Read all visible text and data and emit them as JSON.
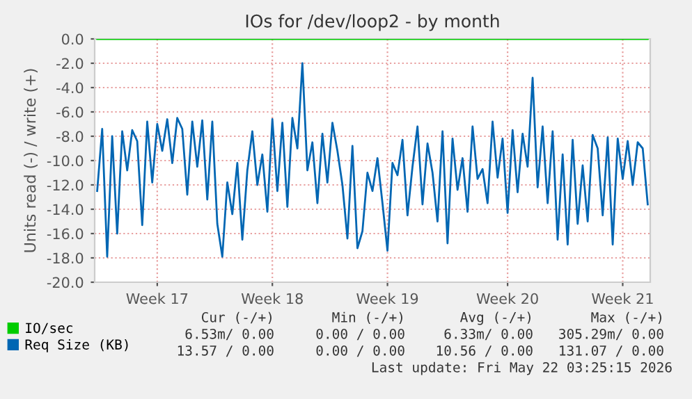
{
  "chart_data": {
    "type": "line",
    "title": "IOs for /dev/loop2 - by month",
    "ylabel": "Units read (-) / write (+)",
    "categories": [
      null,
      null,
      null,
      null,
      null,
      null,
      null,
      null,
      null,
      null,
      null,
      null,
      "Week 17",
      null,
      null,
      null,
      null,
      null,
      null,
      null,
      null,
      null,
      null,
      null,
      null,
      null,
      null,
      null,
      null,
      null,
      null,
      null,
      null,
      null,
      null,
      "Week 18",
      null,
      null,
      null,
      null,
      null,
      null,
      null,
      null,
      null,
      null,
      null,
      null,
      null,
      null,
      null,
      null,
      null,
      null,
      null,
      null,
      null,
      null,
      "Week 19",
      null,
      null,
      null,
      null,
      null,
      null,
      null,
      null,
      null,
      null,
      null,
      null,
      null,
      null,
      null,
      null,
      null,
      null,
      null,
      null,
      null,
      null,
      null,
      "Week 20",
      null,
      null,
      null,
      null,
      null,
      null,
      null,
      null,
      null,
      null,
      null,
      null,
      null,
      null,
      null,
      null,
      null,
      null,
      null,
      null,
      null,
      null,
      "Week 21",
      null,
      null,
      null,
      null,
      null
    ],
    "ylim": [
      -20,
      0
    ],
    "yticks": [
      {
        "value": 0,
        "label": "0.0"
      },
      {
        "value": -2,
        "label": "-2.0"
      },
      {
        "value": -4,
        "label": "-4.0"
      },
      {
        "value": -6,
        "label": "-6.0"
      },
      {
        "value": -8,
        "label": "-8.0"
      },
      {
        "value": -10,
        "label": "-10.0"
      },
      {
        "value": -12,
        "label": "-12.0"
      },
      {
        "value": -14,
        "label": "-14.0"
      },
      {
        "value": -16,
        "label": "-16.0"
      },
      {
        "value": -18,
        "label": "-18.0"
      },
      {
        "value": -20,
        "label": "-20.0"
      }
    ],
    "grid": true,
    "legend": "bottom",
    "series": [
      {
        "name": "IO/sec",
        "color": "#00cc00",
        "values": [
          0,
          0,
          0,
          0,
          0,
          0,
          0,
          0,
          0,
          0,
          0,
          0,
          0,
          0,
          0,
          0,
          0,
          0,
          0,
          0,
          0,
          0,
          0,
          0,
          0,
          0,
          0,
          0,
          0,
          0,
          0,
          0,
          0,
          0,
          0,
          0,
          0,
          0,
          0,
          0,
          0,
          0,
          0,
          0,
          0,
          0,
          0,
          0,
          0,
          0,
          0,
          0,
          0,
          0,
          0,
          0,
          0,
          0,
          0,
          0,
          0,
          0,
          0,
          0,
          0,
          0,
          0,
          0,
          0,
          0,
          0,
          0,
          0,
          0,
          0,
          0,
          0,
          0,
          0,
          0,
          0,
          0,
          0,
          0,
          0,
          0,
          0,
          0,
          0,
          0,
          0,
          0,
          0,
          0,
          0,
          0,
          0,
          0,
          0,
          0,
          0,
          0,
          0,
          0,
          0,
          0,
          0,
          0,
          0,
          0,
          0
        ]
      },
      {
        "name": "Req Size (KB)",
        "color": "#0066b3",
        "values": [
          -12.5,
          -7.4,
          -17.9,
          -8.0,
          -16.0,
          -7.6,
          -10.8,
          -7.5,
          -8.4,
          -15.3,
          -6.8,
          -11.8,
          -7.0,
          -9.2,
          -6.6,
          -10.2,
          -6.5,
          -7.4,
          -12.8,
          -6.8,
          -10.5,
          -6.7,
          -13.2,
          -6.8,
          -15.2,
          -17.9,
          -11.8,
          -14.4,
          -10.2,
          -16.5,
          -10.8,
          -7.6,
          -12.0,
          -9.5,
          -14.2,
          -6.6,
          -12.5,
          -6.9,
          -13.8,
          -6.5,
          -9.0,
          -2.0,
          -10.8,
          -8.5,
          -13.5,
          -7.8,
          -11.8,
          -6.9,
          -9.2,
          -12.0,
          -16.4,
          -8.8,
          -17.2,
          -15.8,
          -11.0,
          -12.5,
          -9.8,
          -13.5,
          -17.4,
          -10.2,
          -11.2,
          -8.3,
          -14.5,
          -10.5,
          -7.2,
          -13.6,
          -8.6,
          -11.0,
          -15.0,
          -7.6,
          -16.8,
          -8.2,
          -12.4,
          -9.8,
          -14.2,
          -7.2,
          -11.5,
          -10.7,
          -13.5,
          -6.8,
          -11.4,
          -8.2,
          -14.3,
          -7.5,
          -12.6,
          -7.8,
          -10.5,
          -3.2,
          -12.2,
          -7.2,
          -13.5,
          -7.6,
          -16.5,
          -9.5,
          -16.9,
          -8.3,
          -15.2,
          -10.4,
          -15.0,
          -7.9,
          -9.0,
          -14.5,
          -8.1,
          -16.9,
          -8.2,
          -11.5,
          -8.4,
          -12.0,
          -8.5,
          -9.0,
          -13.6
        ]
      }
    ],
    "annotations": [
      "Cur (-/+)",
      "Min (-/+)",
      "Avg (-/+)",
      "Max (-/+)",
      "6.53m/ 0.00",
      "0.00 / 0.00",
      "6.33m/ 0.00",
      "305.29m/ 0.00",
      "13.57 / 0.00",
      "0.00 / 0.00",
      "10.56 / 0.00",
      "131.07 / 0.00",
      "Last update: Fri May 22 03:25:15 2026"
    ]
  }
}
